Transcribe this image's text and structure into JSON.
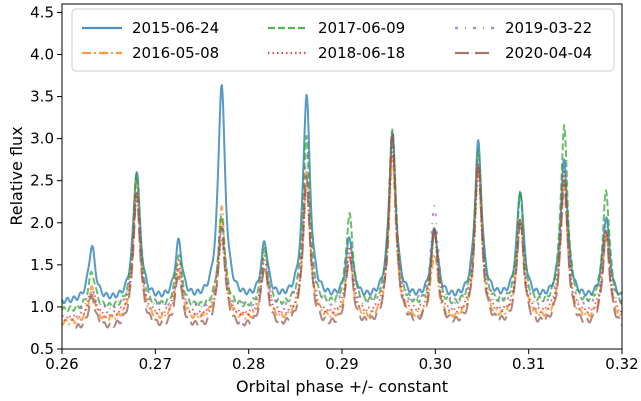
{
  "chart_data": {
    "type": "line",
    "xlabel": "Orbital phase +/- constant",
    "ylabel": "Relative flux",
    "xlim": [
      0.26,
      0.32
    ],
    "ylim": [
      0.5,
      4.6
    ],
    "x_ticks": [
      "0.26",
      "0.27",
      "0.28",
      "0.29",
      "0.30",
      "0.31",
      "0.32"
    ],
    "y_ticks": [
      "0.5",
      "1.0",
      "1.5",
      "2.0",
      "2.5",
      "3.0",
      "3.5",
      "4.0",
      "4.5"
    ],
    "x_tick_values": [
      0.26,
      0.27,
      0.28,
      0.29,
      0.3,
      0.31,
      0.32
    ],
    "y_tick_values": [
      0.5,
      1.0,
      1.5,
      2.0,
      2.5,
      3.0,
      3.5,
      4.0,
      4.5
    ],
    "grid": false,
    "legend_position": "top",
    "legend_columns": 3,
    "peak_phases": [
      0.2632,
      0.268,
      0.2725,
      0.2771,
      0.2817,
      0.2862,
      0.2908,
      0.2954,
      0.2999,
      0.3046,
      0.3091,
      0.3138,
      0.3183
    ],
    "series": [
      {
        "name": "2015-06-24",
        "color": "#1f77b4",
        "dash": "solid",
        "base": 1.05,
        "peaks": [
          1.7,
          2.6,
          1.74,
          3.63,
          1.72,
          3.5,
          1.78,
          3.02,
          1.9,
          2.92,
          2.35,
          2.72,
          2.05
        ],
        "x_range": [
          0.26,
          0.32
        ]
      },
      {
        "name": "2016-05-08",
        "color": "#ff7f0e",
        "dash": "dashdot",
        "base": 0.8,
        "peaks": [
          1.2,
          2.45,
          1.45,
          2.15,
          1.45,
          2.55,
          1.58,
          2.75,
          1.6,
          2.65,
          2.0,
          2.45,
          1.85
        ],
        "x_range": [
          0.26,
          0.32
        ]
      },
      {
        "name": "2017-06-09",
        "color": "#2ca02c",
        "dash": "dashed",
        "base": 0.95,
        "peaks": [
          1.4,
          2.55,
          1.6,
          2.05,
          1.65,
          3.0,
          2.05,
          3.1,
          1.85,
          2.85,
          2.3,
          3.12,
          2.35
        ],
        "x_range": [
          0.26,
          0.32
        ]
      },
      {
        "name": "2018-06-18",
        "color": "#d62728",
        "dash": "dotted",
        "base": 0.85,
        "peaks": [
          1.2,
          2.35,
          1.5,
          1.8,
          1.55,
          2.4,
          1.65,
          2.9,
          1.85,
          2.6,
          2.0,
          2.55,
          1.9
        ],
        "x_range": [
          0.26,
          0.32
        ]
      },
      {
        "name": "2019-03-22",
        "color": "#9467bd",
        "dash": "loosedashdot",
        "base": 0.95,
        "peaks": [
          1.15,
          2.35,
          1.4,
          1.95,
          1.5,
          2.8,
          1.6,
          2.95,
          2.18,
          2.75,
          1.95,
          2.35,
          1.95
        ],
        "x_range": [
          0.262,
          0.32
        ]
      },
      {
        "name": "2020-04-04",
        "color": "#8c564b",
        "dash": "longdash",
        "base": 0.72,
        "peaks": [
          1.1,
          2.3,
          1.35,
          1.9,
          1.45,
          2.5,
          1.55,
          3.05,
          1.9,
          2.7,
          2.0,
          2.5,
          1.85
        ],
        "x_range": [
          0.2615,
          0.32
        ]
      }
    ]
  }
}
